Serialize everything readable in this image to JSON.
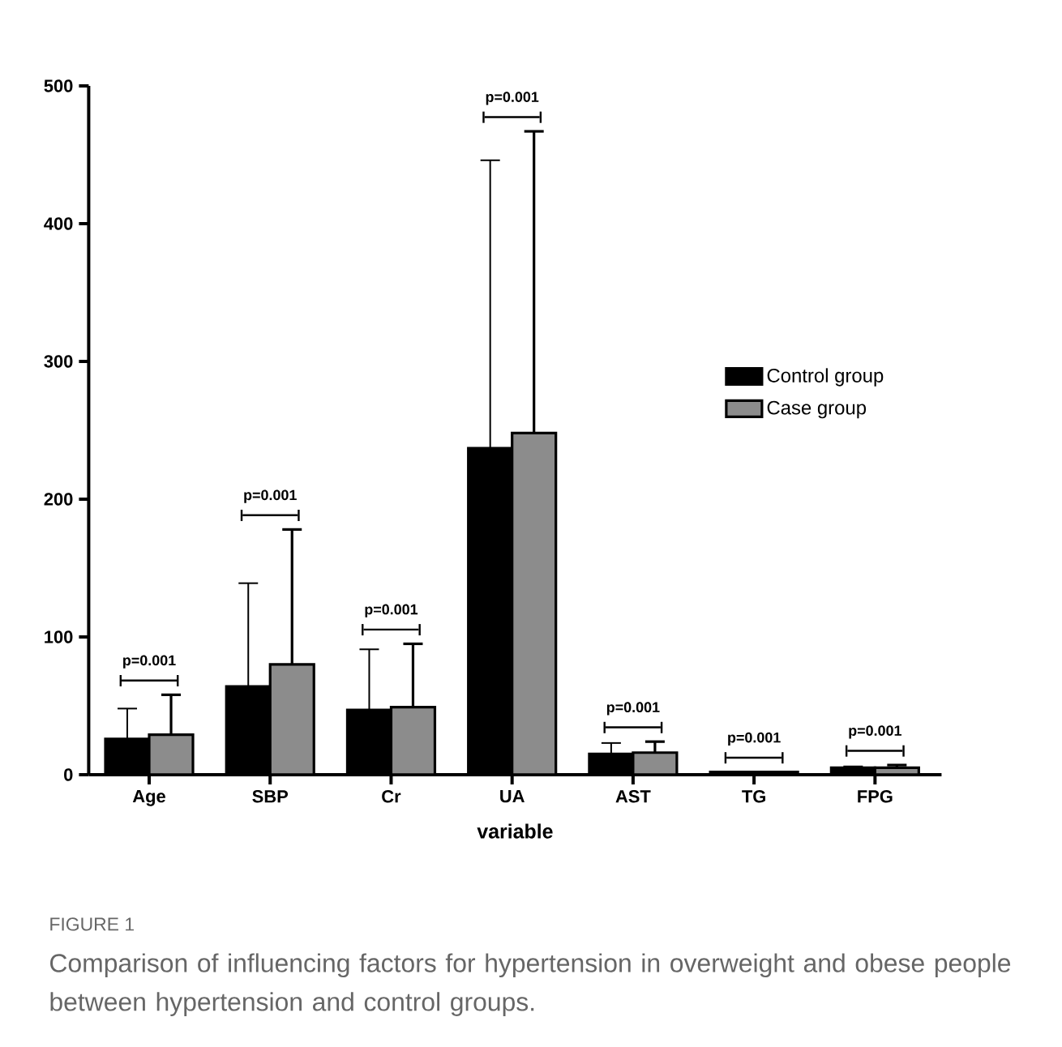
{
  "chart_data": {
    "type": "bar",
    "xlabel": "variable",
    "categories": [
      "Age",
      "SBP",
      "Cr",
      "UA",
      "AST",
      "TG",
      "FPG"
    ],
    "series": [
      {
        "name": "Control group",
        "color": "#000000",
        "values": [
          26,
          64,
          47,
          237,
          15,
          2,
          5
        ],
        "errors": [
          22,
          75,
          44,
          209,
          8,
          null,
          1
        ]
      },
      {
        "name": "Case group",
        "color": "#8c8c8c",
        "values": [
          29,
          80,
          49,
          248,
          16,
          2,
          5
        ],
        "errors": [
          29,
          98,
          46,
          219,
          8,
          null,
          2
        ]
      }
    ],
    "ylim": [
      0,
      500
    ],
    "yticks": [
      0,
      100,
      200,
      300,
      400,
      500
    ],
    "legend": "right",
    "grid": false,
    "annotations": [
      "p=0.001",
      "p=0.001",
      "p=0.001",
      "p=0.001",
      "p=0.001",
      "p=0.001",
      "p=0.001",
      "FIGURE 1",
      "Comparison of influencing factors for hypertension in overweight and obese people between hypertension and control groups."
    ]
  }
}
